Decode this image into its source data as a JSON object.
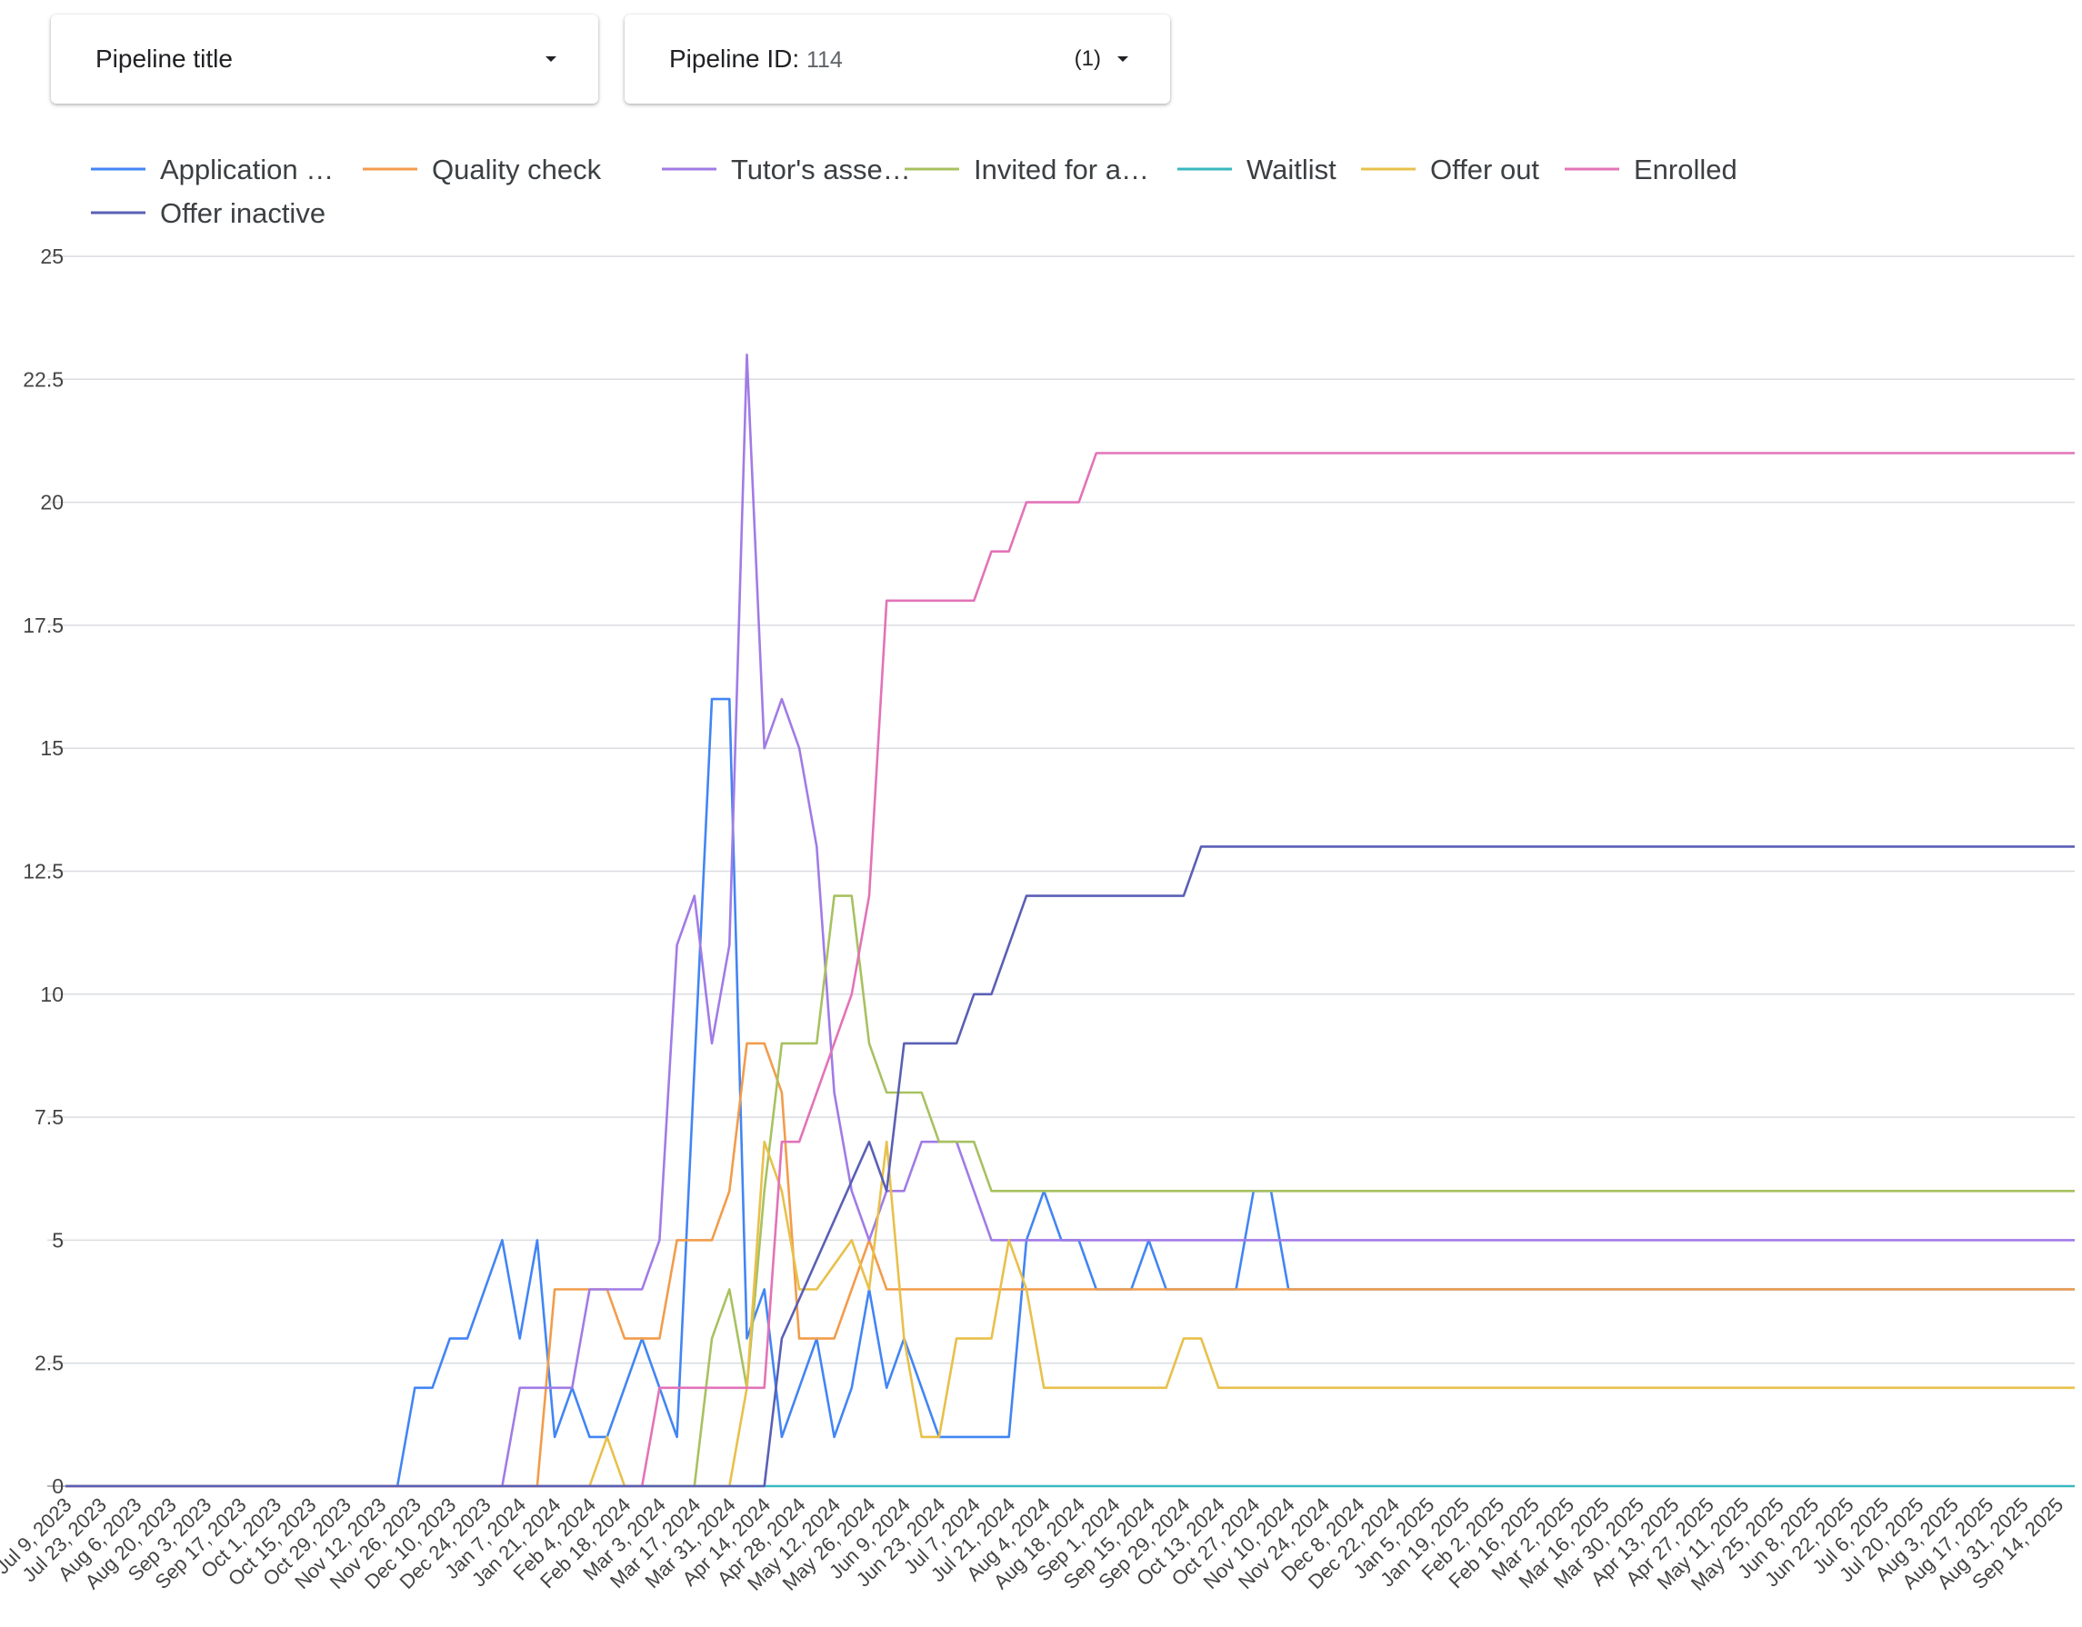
{
  "filters": {
    "pipeline_title": {
      "label": "Pipeline title"
    },
    "pipeline_id": {
      "label": "Pipeline ID",
      "value": "114",
      "count": "(1)"
    }
  },
  "chart_data": {
    "type": "line",
    "ylim": [
      0,
      25
    ],
    "yticks": [
      "0",
      "2.5",
      "5",
      "7.5",
      "10",
      "12.5",
      "15",
      "17.5",
      "20",
      "22.5",
      "25"
    ],
    "grid": true,
    "legend_position": "top",
    "x_tick_labels": [
      "Jul 9, 2023",
      "Jul 23, 2023",
      "Aug 6, 2023",
      "Aug 20, 2023",
      "Sep 3, 2023",
      "Sep 17, 2023",
      "Oct 1, 2023",
      "Oct 15, 2023",
      "Oct 29, 2023",
      "Nov 12, 2023",
      "Nov 26, 2023",
      "Dec 10, 2023",
      "Dec 24, 2023",
      "Jan 7, 2024",
      "Jan 21, 2024",
      "Feb 4, 2024",
      "Feb 18, 2024",
      "Mar 3, 2024",
      "Mar 17, 2024",
      "Mar 31, 2024",
      "Apr 14, 2024",
      "Apr 28, 2024",
      "May 12, 2024",
      "May 26, 2024",
      "Jun 9, 2024",
      "Jun 23, 2024",
      "Jul 7, 2024",
      "Jul 21, 2024",
      "Aug 4, 2024",
      "Aug 18, 2024",
      "Sep 1, 2024",
      "Sep 15, 2024",
      "Sep 29, 2024",
      "Oct 13, 2024",
      "Oct 27, 2024",
      "Nov 10, 2024",
      "Nov 24, 2024",
      "Dec 8, 2024",
      "Dec 22, 2024",
      "Jan 5, 2025",
      "Jan 19, 2025",
      "Feb 2, 2025",
      "Feb 16, 2025",
      "Mar 2, 2025",
      "Mar 16, 2025",
      "Mar 30, 2025",
      "Apr 13, 2025",
      "Apr 27, 2025",
      "May 11, 2025",
      "May 25, 2025",
      "Jun 8, 2025",
      "Jun 22, 2025",
      "Jul 6, 2025",
      "Jul 20, 2025",
      "Aug 3, 2025",
      "Aug 17, 2025",
      "Aug 31, 2025",
      "Sep 14, 2025"
    ],
    "series": [
      {
        "name": "Application …",
        "color": "#4285f4",
        "points": [
          [
            0,
            0
          ],
          [
            19,
            0
          ],
          [
            20,
            2
          ],
          [
            21,
            2
          ],
          [
            22,
            3
          ],
          [
            23,
            3
          ],
          [
            25,
            5
          ],
          [
            26,
            3
          ],
          [
            27,
            5
          ],
          [
            28,
            1
          ],
          [
            29,
            2
          ],
          [
            30,
            1
          ],
          [
            31,
            1
          ],
          [
            33,
            3
          ],
          [
            35,
            1
          ],
          [
            37,
            16
          ],
          [
            38,
            16
          ],
          [
            39,
            3
          ],
          [
            40,
            4
          ],
          [
            41,
            1
          ],
          [
            43,
            3
          ],
          [
            44,
            1
          ],
          [
            45,
            2
          ],
          [
            46,
            4
          ],
          [
            47,
            2
          ],
          [
            48,
            3
          ],
          [
            50,
            1
          ],
          [
            54,
            1
          ],
          [
            55,
            5
          ],
          [
            56,
            6
          ],
          [
            57,
            5
          ],
          [
            58,
            5
          ],
          [
            59,
            4
          ],
          [
            61,
            4
          ],
          [
            62,
            5
          ],
          [
            63,
            4
          ],
          [
            67,
            4
          ],
          [
            68,
            6
          ],
          [
            69,
            6
          ],
          [
            70,
            4
          ],
          [
            115,
            4
          ]
        ]
      },
      {
        "name": "Quality check",
        "color": "#f29c4b",
        "points": [
          [
            0,
            0
          ],
          [
            27,
            0
          ],
          [
            28,
            4
          ],
          [
            30,
            4
          ],
          [
            31,
            4
          ],
          [
            32,
            3
          ],
          [
            34,
            3
          ],
          [
            35,
            5
          ],
          [
            37,
            5
          ],
          [
            38,
            6
          ],
          [
            39,
            9
          ],
          [
            40,
            9
          ],
          [
            41,
            8
          ],
          [
            42,
            3
          ],
          [
            44,
            3
          ],
          [
            46,
            5
          ],
          [
            47,
            4
          ],
          [
            115,
            4
          ]
        ]
      },
      {
        "name": "Tutor's asse…",
        "color": "#a17be6",
        "points": [
          [
            0,
            0
          ],
          [
            25,
            0
          ],
          [
            26,
            2
          ],
          [
            29,
            2
          ],
          [
            30,
            4
          ],
          [
            33,
            4
          ],
          [
            34,
            5
          ],
          [
            35,
            11
          ],
          [
            36,
            12
          ],
          [
            37,
            9
          ],
          [
            38,
            11
          ],
          [
            39,
            23
          ],
          [
            40,
            15
          ],
          [
            41,
            16
          ],
          [
            42,
            15
          ],
          [
            43,
            13
          ],
          [
            44,
            8
          ],
          [
            45,
            6
          ],
          [
            46,
            5
          ],
          [
            47,
            6
          ],
          [
            48,
            6
          ],
          [
            49,
            7
          ],
          [
            51,
            7
          ],
          [
            53,
            5
          ],
          [
            115,
            5
          ]
        ]
      },
      {
        "name": "Invited for a…",
        "color": "#a8c160",
        "points": [
          [
            0,
            0
          ],
          [
            36,
            0
          ],
          [
            37,
            3
          ],
          [
            38,
            4
          ],
          [
            39,
            2
          ],
          [
            40,
            6
          ],
          [
            41,
            9
          ],
          [
            43,
            9
          ],
          [
            44,
            12
          ],
          [
            45,
            12
          ],
          [
            46,
            9
          ],
          [
            47,
            8
          ],
          [
            49,
            8
          ],
          [
            50,
            7
          ],
          [
            52,
            7
          ],
          [
            53,
            6
          ],
          [
            115,
            6
          ]
        ]
      },
      {
        "name": "Waitlist",
        "color": "#3ab7bf",
        "points": [
          [
            0,
            0
          ],
          [
            115,
            0
          ]
        ]
      },
      {
        "name": "Offer out",
        "color": "#e8c04b",
        "points": [
          [
            0,
            0
          ],
          [
            30,
            0
          ],
          [
            31,
            1
          ],
          [
            32,
            0
          ],
          [
            38,
            0
          ],
          [
            39,
            2
          ],
          [
            40,
            7
          ],
          [
            41,
            6
          ],
          [
            42,
            4
          ],
          [
            43,
            4
          ],
          [
            45,
            5
          ],
          [
            46,
            4
          ],
          [
            47,
            7
          ],
          [
            48,
            3
          ],
          [
            49,
            1
          ],
          [
            50,
            1
          ],
          [
            51,
            3
          ],
          [
            53,
            3
          ],
          [
            54,
            5
          ],
          [
            55,
            4
          ],
          [
            56,
            2
          ],
          [
            63,
            2
          ],
          [
            64,
            3
          ],
          [
            65,
            3
          ],
          [
            66,
            2
          ],
          [
            115,
            2
          ]
        ]
      },
      {
        "name": "Enrolled",
        "color": "#e273b8",
        "points": [
          [
            0,
            0
          ],
          [
            33,
            0
          ],
          [
            34,
            2
          ],
          [
            40,
            2
          ],
          [
            41,
            7
          ],
          [
            42,
            7
          ],
          [
            45,
            10
          ],
          [
            46,
            12
          ],
          [
            47,
            18
          ],
          [
            52,
            18
          ],
          [
            53,
            19
          ],
          [
            54,
            19
          ],
          [
            55,
            20
          ],
          [
            58,
            20
          ],
          [
            59,
            21
          ],
          [
            115,
            21
          ]
        ]
      },
      {
        "name": "Offer inactive",
        "color": "#5a5fb5",
        "points": [
          [
            0,
            0
          ],
          [
            40,
            0
          ],
          [
            41,
            3
          ],
          [
            46,
            7
          ],
          [
            47,
            6
          ],
          [
            48,
            9
          ],
          [
            51,
            9
          ],
          [
            52,
            10
          ],
          [
            53,
            10
          ],
          [
            55,
            12
          ],
          [
            64,
            12
          ],
          [
            65,
            13
          ],
          [
            115,
            13
          ]
        ]
      }
    ]
  }
}
